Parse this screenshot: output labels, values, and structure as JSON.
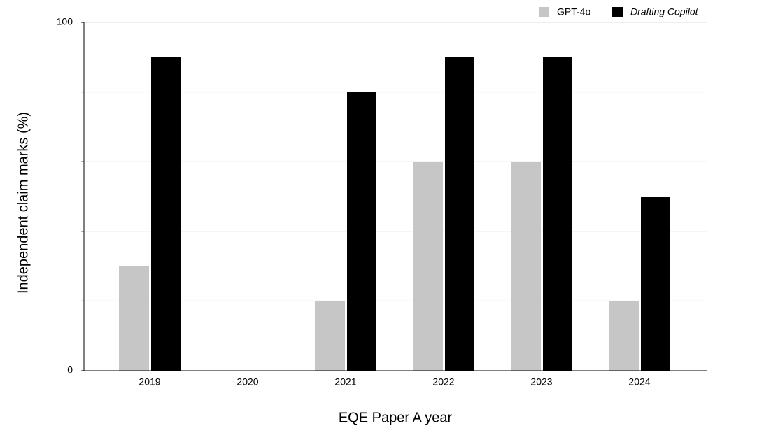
{
  "chart_data": {
    "type": "bar",
    "x_label": "EQE Paper A year",
    "y_label": "Independent claim marks (%)",
    "categories": [
      "2019",
      "2020",
      "2021",
      "2022",
      "2023",
      "2024"
    ],
    "series": [
      {
        "name": "GPT-4o",
        "color": "#c6c6c6",
        "values": [
          30,
          0,
          20,
          60,
          60,
          20
        ]
      },
      {
        "name": "Drafting Copilot",
        "color": "#000000",
        "values": [
          90,
          0,
          80,
          90,
          90,
          50
        ]
      }
    ],
    "ylim": [
      0,
      100
    ],
    "yticks": [
      0,
      {
        "value": 20,
        "label": null
      },
      {
        "value": 40,
        "label": null
      },
      {
        "value": 60,
        "label": null
      },
      {
        "value": 80,
        "label": null
      },
      100
    ],
    "grid": true,
    "legend": "top-right"
  }
}
